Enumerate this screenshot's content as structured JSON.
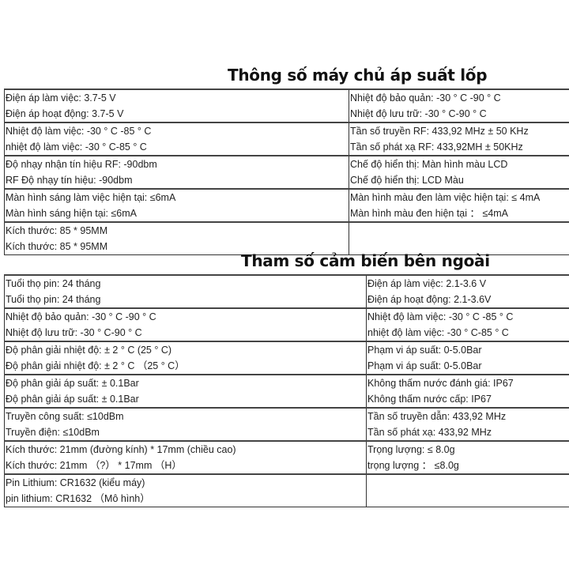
{
  "host": {
    "title": "Thông số máy chủ áp suất lốp",
    "rows": [
      {
        "left": [
          "Điện áp làm việc: 3.7-5 V",
          "Điện áp hoạt động: 3.7-5 V"
        ],
        "right": [
          "Nhiệt độ bảo quản: -30 ° C -90 ° C",
          "Nhiệt độ lưu trữ: -30 ° C-90 ° C"
        ]
      },
      {
        "left": [
          "Nhiệt độ làm việc: -30 ° C -85 ° C",
          "nhiệt độ làm việc: -30 ° C-85 ° C"
        ],
        "right": [
          "Tần số truyền RF: 433,92 MHz ± 50 KHz",
          "Tần số phát xạ RF: 433,92MH ± 50KHz"
        ]
      },
      {
        "left": [
          "Độ nhạy nhận tín hiệu RF: -90dbm",
          "RF Độ nhạy tín hiệu: -90dbm"
        ],
        "right": [
          "Chế độ hiển thị: Màn hình màu LCD",
          "Chế độ hiển thị: LCD Màu"
        ]
      },
      {
        "left": [
          "Màn hình sáng làm việc hiện tại: ≤6mA",
          "Màn hình sáng hiện tại: ≤6mA"
        ],
        "right": [
          "Màn hình màu đen làm việc hiện tại: ≤ 4mA",
          "Màn hình màu đen hiện tại ：  ≤4mA"
        ]
      },
      {
        "left": [
          "Kích thước: 85 * 95MM",
          "Kích thước: 85 * 95MM"
        ],
        "right": []
      }
    ]
  },
  "sensor": {
    "title": "Tham số cảm biến bên ngoài",
    "rows": [
      {
        "left": [
          "Tuổi thọ pin: 24 tháng",
          "Tuổi thọ pin: 24 tháng"
        ],
        "right": [
          "Điện áp làm việc: 2.1-3.6 V",
          "Điện áp hoạt động: 2.1-3.6V"
        ]
      },
      {
        "left": [
          "Nhiệt độ bảo quản: -30 ° C -90 ° C",
          "Nhiệt độ lưu trữ: -30 ° C-90 ° C"
        ],
        "right": [
          "Nhiệt độ làm việc: -30 ° C -85 ° C",
          "nhiệt độ làm việc: -30 ° C-85 ° C"
        ]
      },
      {
        "left": [
          "Độ phân giải nhiệt độ: ± 2 ° C (25 ° C)",
          "Độ phân giải nhiệt độ: ± 2 ° C （25 ° C）"
        ],
        "right": [
          "Phạm vi áp suất: 0-5.0Bar",
          "Phạm vi áp suất: 0-5.0Bar"
        ]
      },
      {
        "left": [
          "Độ phân giải áp suất: ± 0.1Bar",
          "Độ phân giải áp suất: ± 0.1Bar"
        ],
        "right": [
          "Không thấm nước đánh giá: IP67",
          "Không thấm nước cấp: IP67"
        ]
      },
      {
        "left": [
          "Truyền công suất: ≤10dBm",
          "Truyền điện: ≤10dBm"
        ],
        "right": [
          "Tần số truyền dẫn: 433,92 MHz",
          "Tần số phát xạ: 433,92 MHz"
        ]
      },
      {
        "left": [
          "Kích thước: 21mm (đường kính) * 17mm (chiều cao)",
          "Kích thước: 21mm （?） * 17mm （H）"
        ],
        "right": [
          "Trọng lượng: ≤ 8.0g",
          "trọng lượng ：  ≤8.0g"
        ]
      },
      {
        "left": [
          "Pin Lithium: CR1632 (kiểu máy)",
          "pin lithium: CR1632 （Mô hình）"
        ],
        "right": []
      }
    ]
  }
}
